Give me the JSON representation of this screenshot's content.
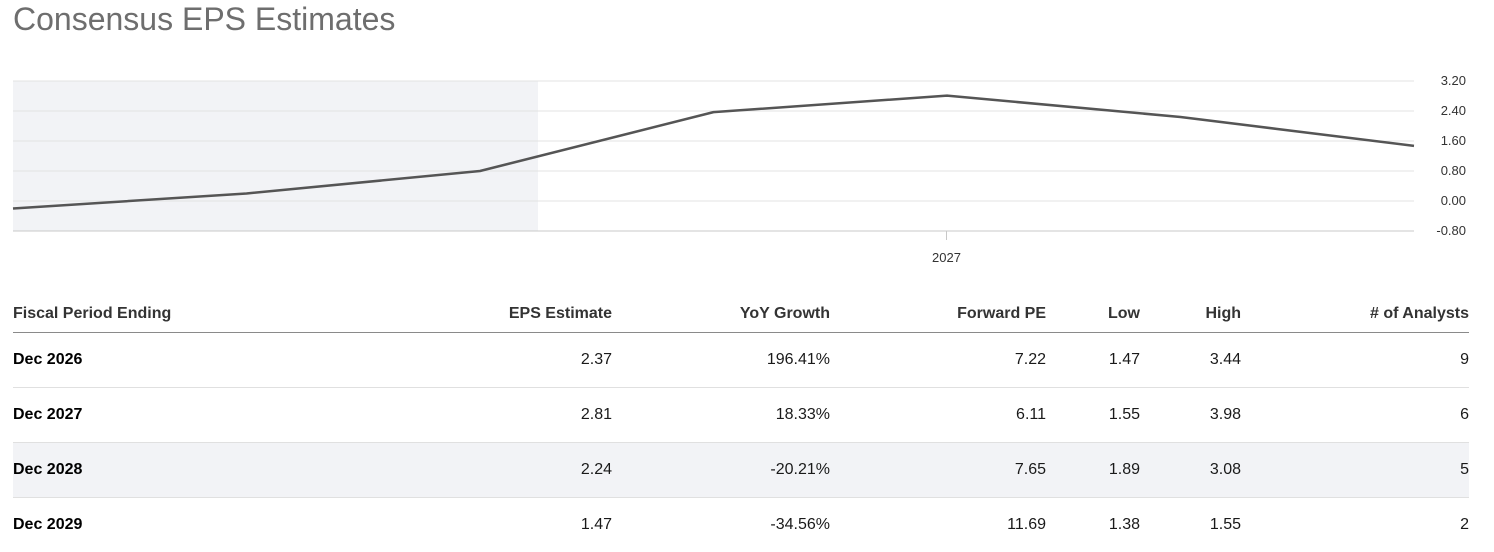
{
  "title": "Consensus EPS Estimates",
  "chart_data": {
    "type": "line",
    "title": "",
    "xlabel": "",
    "ylabel": "",
    "x_tick_labels": [
      "2027"
    ],
    "y_ticks": [
      "3.20",
      "2.40",
      "1.60",
      "0.80",
      "0.00",
      "-0.80"
    ],
    "ylim": [
      -0.8,
      3.2
    ],
    "grid": true,
    "shaded_region": "historical periods (left portion)",
    "line_color": "#555555",
    "shade_color": "#f2f3f6",
    "series": [
      {
        "points": [
          {
            "x": "2023",
            "y": -0.2
          },
          {
            "x": "2024",
            "y": 0.2
          },
          {
            "x": "2025",
            "y": 0.8
          },
          {
            "x": "2026",
            "y": 2.37
          },
          {
            "x": "2027",
            "y": 2.81
          },
          {
            "x": "2028",
            "y": 2.24
          },
          {
            "x": "2029",
            "y": 1.47
          }
        ]
      }
    ]
  },
  "table": {
    "headers": [
      "Fiscal Period Ending",
      "EPS Estimate",
      "YoY Growth",
      "Forward PE",
      "Low",
      "High",
      "# of Analysts"
    ],
    "rows": [
      {
        "period": "Dec 2026",
        "eps": "2.37",
        "yoy": "196.41%",
        "pe": "7.22",
        "low": "1.47",
        "high": "3.44",
        "analysts": "9"
      },
      {
        "period": "Dec 2027",
        "eps": "2.81",
        "yoy": "18.33%",
        "pe": "6.11",
        "low": "1.55",
        "high": "3.98",
        "analysts": "6"
      },
      {
        "period": "Dec 2028",
        "eps": "2.24",
        "yoy": "-20.21%",
        "pe": "7.65",
        "low": "1.89",
        "high": "3.08",
        "analysts": "5"
      },
      {
        "period": "Dec 2029",
        "eps": "1.47",
        "yoy": "-34.56%",
        "pe": "11.69",
        "low": "1.38",
        "high": "1.55",
        "analysts": "2"
      }
    ]
  }
}
